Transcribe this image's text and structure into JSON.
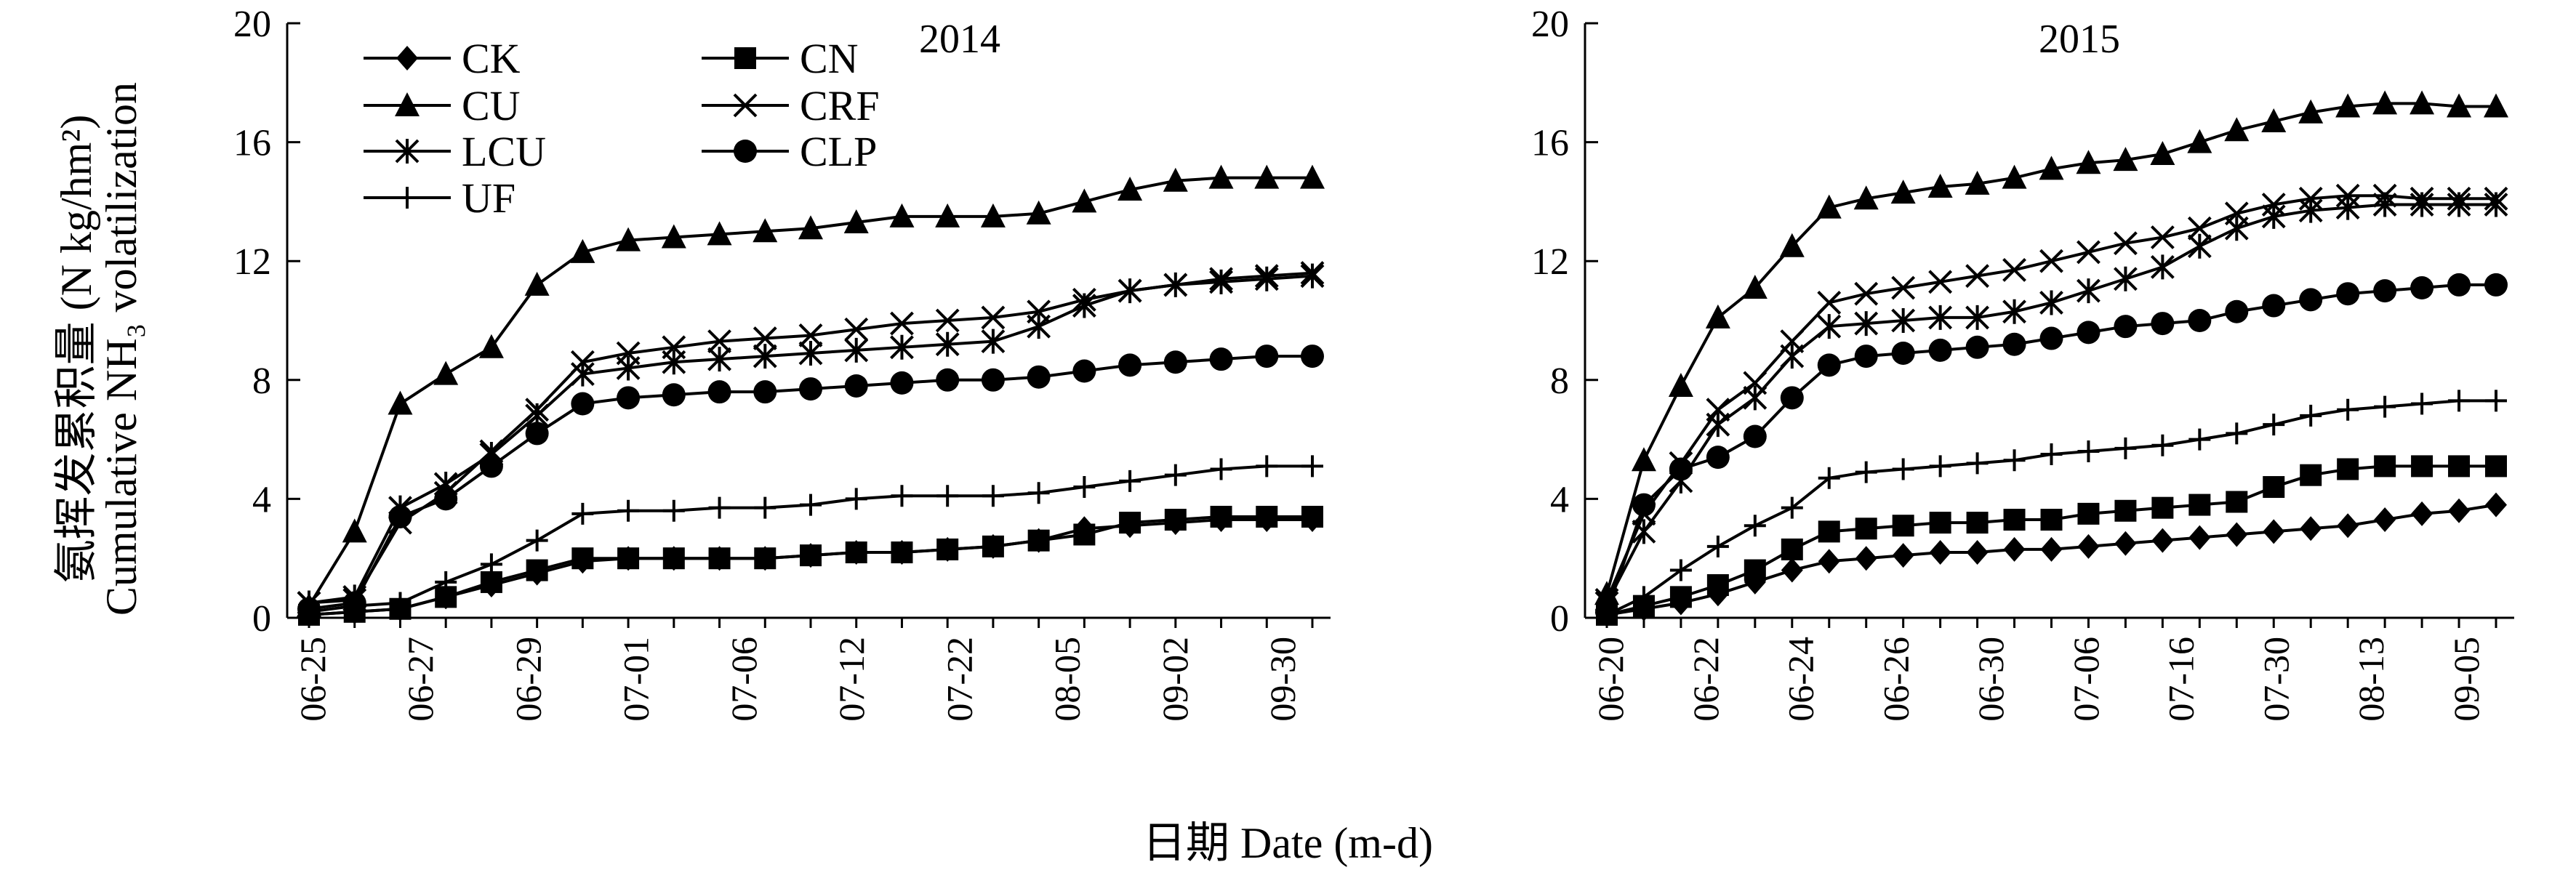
{
  "chart_data": [
    {
      "type": "line",
      "title": "2014",
      "ylabel_cn": "氨挥发累积量 (N kg/hm²)",
      "ylabel_en": "Cumulative NH₃ volatilization",
      "xlabel": "日期 Date (m-d)",
      "ylim": [
        0,
        20
      ],
      "yticks": [
        "0",
        "4",
        "8",
        "12",
        "16",
        "20"
      ],
      "x_tick_labels": [
        "06-25",
        "06-27",
        "06-29",
        "07-01",
        "07-06",
        "07-12",
        "07-22",
        "08-05",
        "09-02",
        "09-30"
      ],
      "n_points": 23,
      "series": [
        {
          "name": "CK",
          "marker": "diamond",
          "values": [
            0.1,
            0.2,
            0.3,
            0.7,
            1.1,
            1.5,
            1.9,
            2.0,
            2.0,
            2.0,
            2.0,
            2.1,
            2.2,
            2.2,
            2.3,
            2.4,
            2.6,
            3.0,
            3.1,
            3.2,
            3.3,
            3.3,
            3.3
          ]
        },
        {
          "name": "CN",
          "marker": "square",
          "values": [
            0.1,
            0.2,
            0.3,
            0.7,
            1.2,
            1.6,
            2.0,
            2.0,
            2.0,
            2.0,
            2.0,
            2.1,
            2.2,
            2.2,
            2.3,
            2.4,
            2.6,
            2.8,
            3.2,
            3.3,
            3.4,
            3.4,
            3.4
          ]
        },
        {
          "name": "CU",
          "marker": "triangle",
          "values": [
            0.4,
            2.9,
            7.2,
            8.2,
            9.1,
            11.2,
            12.3,
            12.7,
            12.8,
            12.9,
            13.0,
            13.1,
            13.3,
            13.5,
            13.5,
            13.5,
            13.6,
            14.0,
            14.4,
            14.7,
            14.8,
            14.8,
            14.8
          ]
        },
        {
          "name": "CRF",
          "marker": "cross",
          "values": [
            0.5,
            0.6,
            3.2,
            4.2,
            5.6,
            7.0,
            8.6,
            8.9,
            9.1,
            9.3,
            9.4,
            9.5,
            9.7,
            9.9,
            10.0,
            10.1,
            10.3,
            10.7,
            11.0,
            11.2,
            11.4,
            11.5,
            11.6
          ]
        },
        {
          "name": "LCU",
          "marker": "asterisk",
          "values": [
            0.5,
            0.7,
            3.7,
            4.5,
            5.5,
            6.8,
            8.2,
            8.4,
            8.6,
            8.7,
            8.8,
            8.9,
            9.0,
            9.1,
            9.2,
            9.3,
            9.8,
            10.5,
            11.0,
            11.2,
            11.3,
            11.4,
            11.5
          ]
        },
        {
          "name": "CLP",
          "marker": "circle",
          "values": [
            0.3,
            0.5,
            3.4,
            4.0,
            5.1,
            6.2,
            7.2,
            7.4,
            7.5,
            7.6,
            7.6,
            7.7,
            7.8,
            7.9,
            8.0,
            8.0,
            8.1,
            8.3,
            8.5,
            8.6,
            8.7,
            8.8,
            8.8
          ]
        },
        {
          "name": "UF",
          "marker": "plus",
          "values": [
            0.2,
            0.4,
            0.5,
            1.2,
            1.8,
            2.6,
            3.5,
            3.6,
            3.6,
            3.7,
            3.7,
            3.8,
            4.0,
            4.1,
            4.1,
            4.1,
            4.2,
            4.4,
            4.6,
            4.8,
            5.0,
            5.1,
            5.1
          ]
        }
      ]
    },
    {
      "type": "line",
      "title": "2015",
      "ylim": [
        0,
        20
      ],
      "yticks": [
        "0",
        "4",
        "8",
        "12",
        "16",
        "20"
      ],
      "x_tick_labels": [
        "06-20",
        "06-22",
        "06-24",
        "06-26",
        "06-30",
        "07-06",
        "07-16",
        "07-30",
        "08-13",
        "09-05"
      ],
      "n_points": 25,
      "series": [
        {
          "name": "CK",
          "marker": "diamond",
          "values": [
            0.1,
            0.3,
            0.5,
            0.8,
            1.2,
            1.6,
            1.9,
            2.0,
            2.1,
            2.2,
            2.2,
            2.3,
            2.3,
            2.4,
            2.5,
            2.6,
            2.7,
            2.8,
            2.9,
            3.0,
            3.1,
            3.3,
            3.5,
            3.6,
            3.8
          ]
        },
        {
          "name": "CN",
          "marker": "square",
          "values": [
            0.1,
            0.4,
            0.7,
            1.1,
            1.6,
            2.3,
            2.9,
            3.0,
            3.1,
            3.2,
            3.2,
            3.3,
            3.3,
            3.5,
            3.6,
            3.7,
            3.8,
            3.9,
            4.4,
            4.8,
            5.0,
            5.1,
            5.1,
            5.1,
            5.1
          ]
        },
        {
          "name": "CU",
          "marker": "triangle",
          "values": [
            0.8,
            5.3,
            7.8,
            10.1,
            11.1,
            12.5,
            13.8,
            14.1,
            14.3,
            14.5,
            14.6,
            14.8,
            15.1,
            15.3,
            15.4,
            15.6,
            16.0,
            16.4,
            16.7,
            17.0,
            17.2,
            17.3,
            17.3,
            17.2,
            17.2
          ]
        },
        {
          "name": "CRF",
          "marker": "cross",
          "values": [
            0.6,
            3.5,
            5.2,
            7.0,
            7.9,
            9.3,
            10.6,
            10.9,
            11.1,
            11.3,
            11.5,
            11.7,
            12.0,
            12.3,
            12.6,
            12.8,
            13.1,
            13.6,
            13.9,
            14.1,
            14.2,
            14.2,
            14.1,
            14.1,
            14.1
          ]
        },
        {
          "name": "LCU",
          "marker": "asterisk",
          "values": [
            0.5,
            2.9,
            4.6,
            6.5,
            7.4,
            8.8,
            9.8,
            9.9,
            10.0,
            10.1,
            10.1,
            10.3,
            10.6,
            11.0,
            11.4,
            11.8,
            12.5,
            13.1,
            13.5,
            13.7,
            13.8,
            13.9,
            13.9,
            13.9,
            13.9
          ]
        },
        {
          "name": "CLP",
          "marker": "circle",
          "values": [
            0.2,
            3.8,
            5.0,
            5.4,
            6.1,
            7.4,
            8.5,
            8.8,
            8.9,
            9.0,
            9.1,
            9.2,
            9.4,
            9.6,
            9.8,
            9.9,
            10.0,
            10.3,
            10.5,
            10.7,
            10.9,
            11.0,
            11.1,
            11.2,
            11.2
          ]
        },
        {
          "name": "UF",
          "marker": "plus",
          "values": [
            0.1,
            0.7,
            1.6,
            2.4,
            3.1,
            3.7,
            4.7,
            4.9,
            5.0,
            5.1,
            5.2,
            5.3,
            5.5,
            5.6,
            5.7,
            5.8,
            6.0,
            6.2,
            6.5,
            6.8,
            7.0,
            7.1,
            7.2,
            7.3,
            7.3
          ]
        }
      ]
    }
  ],
  "legend": [
    "CK",
    "CN",
    "CU",
    "CRF",
    "LCU",
    "CLP",
    "UF"
  ],
  "line_color": "#000000"
}
